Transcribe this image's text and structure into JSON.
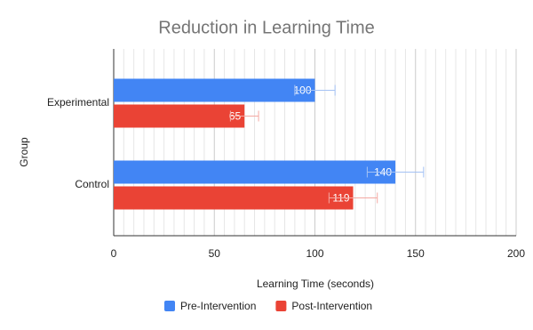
{
  "chart_data": {
    "type": "hbar",
    "title": "Reduction in Learning Time",
    "x_label": "Learning Time (seconds)",
    "y_label": "Group",
    "categories": [
      "Experimental",
      "Control"
    ],
    "series": [
      {
        "name": "Pre-Intervention",
        "color": "#4285f4",
        "error_color": "#a4c2f4",
        "values": [
          100,
          140
        ],
        "errors": [
          10,
          14
        ]
      },
      {
        "name": "Post-Intervention",
        "color": "#ea4335",
        "error_color": "#f4a9a3",
        "values": [
          65,
          119
        ],
        "errors": [
          7,
          12
        ]
      }
    ],
    "xlim": [
      0,
      200
    ],
    "xticks": [
      0,
      50,
      100,
      150,
      200
    ],
    "grid": true,
    "minor_grid": true,
    "legend": "bottom"
  }
}
